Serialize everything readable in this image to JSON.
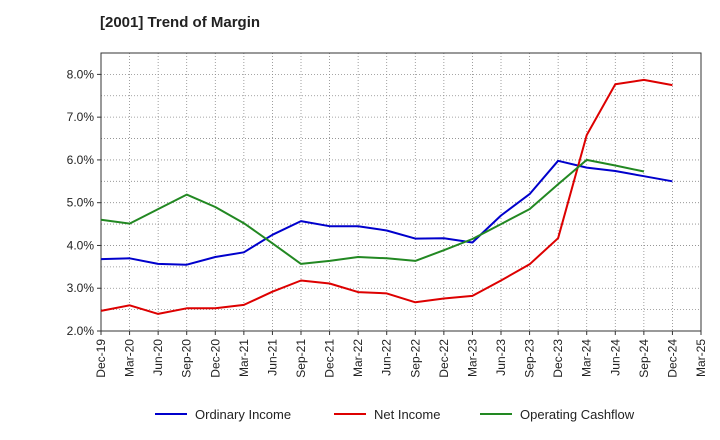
{
  "chart_data": {
    "type": "line",
    "title": "[2001]  Trend of Margin",
    "xlabel": "",
    "ylabel": "",
    "x": [
      "Dec-19",
      "Mar-20",
      "Jun-20",
      "Sep-20",
      "Dec-20",
      "Mar-21",
      "Jun-21",
      "Sep-21",
      "Dec-21",
      "Mar-22",
      "Jun-22",
      "Sep-22",
      "Dec-22",
      "Mar-23",
      "Jun-23",
      "Sep-23",
      "Dec-23",
      "Mar-24",
      "Jun-24",
      "Sep-24",
      "Dec-24",
      "Mar-25"
    ],
    "ylim": [
      2.0,
      8.5
    ],
    "yticks": [
      2.0,
      3.0,
      4.0,
      5.0,
      6.0,
      7.0,
      8.0
    ],
    "ytick_labels": [
      "2.0%",
      "3.0%",
      "4.0%",
      "5.0%",
      "6.0%",
      "7.0%",
      "8.0%"
    ],
    "grid": true,
    "legend_position": "bottom",
    "series": [
      {
        "name": "Ordinary Income",
        "color": "#0000cc",
        "values": [
          3.68,
          3.7,
          3.57,
          3.55,
          3.73,
          3.84,
          4.25,
          4.57,
          4.45,
          4.45,
          4.35,
          4.16,
          4.17,
          4.07,
          4.7,
          5.2,
          5.98,
          5.82,
          5.74,
          5.62,
          5.5,
          null
        ]
      },
      {
        "name": "Net Income",
        "color": "#dd0000",
        "values": [
          2.47,
          2.6,
          2.4,
          2.53,
          2.53,
          2.61,
          2.92,
          3.18,
          3.11,
          2.91,
          2.88,
          2.67,
          2.76,
          2.82,
          3.18,
          3.56,
          4.17,
          6.58,
          7.77,
          7.87,
          7.75,
          null
        ]
      },
      {
        "name": "Operating Cashflow",
        "color": "#228822",
        "values": [
          4.6,
          4.51,
          4.85,
          5.19,
          4.9,
          4.52,
          4.05,
          3.57,
          3.64,
          3.73,
          3.7,
          3.64,
          3.89,
          4.15,
          4.5,
          4.85,
          5.43,
          6.0,
          5.87,
          5.73,
          null,
          null
        ]
      }
    ]
  }
}
